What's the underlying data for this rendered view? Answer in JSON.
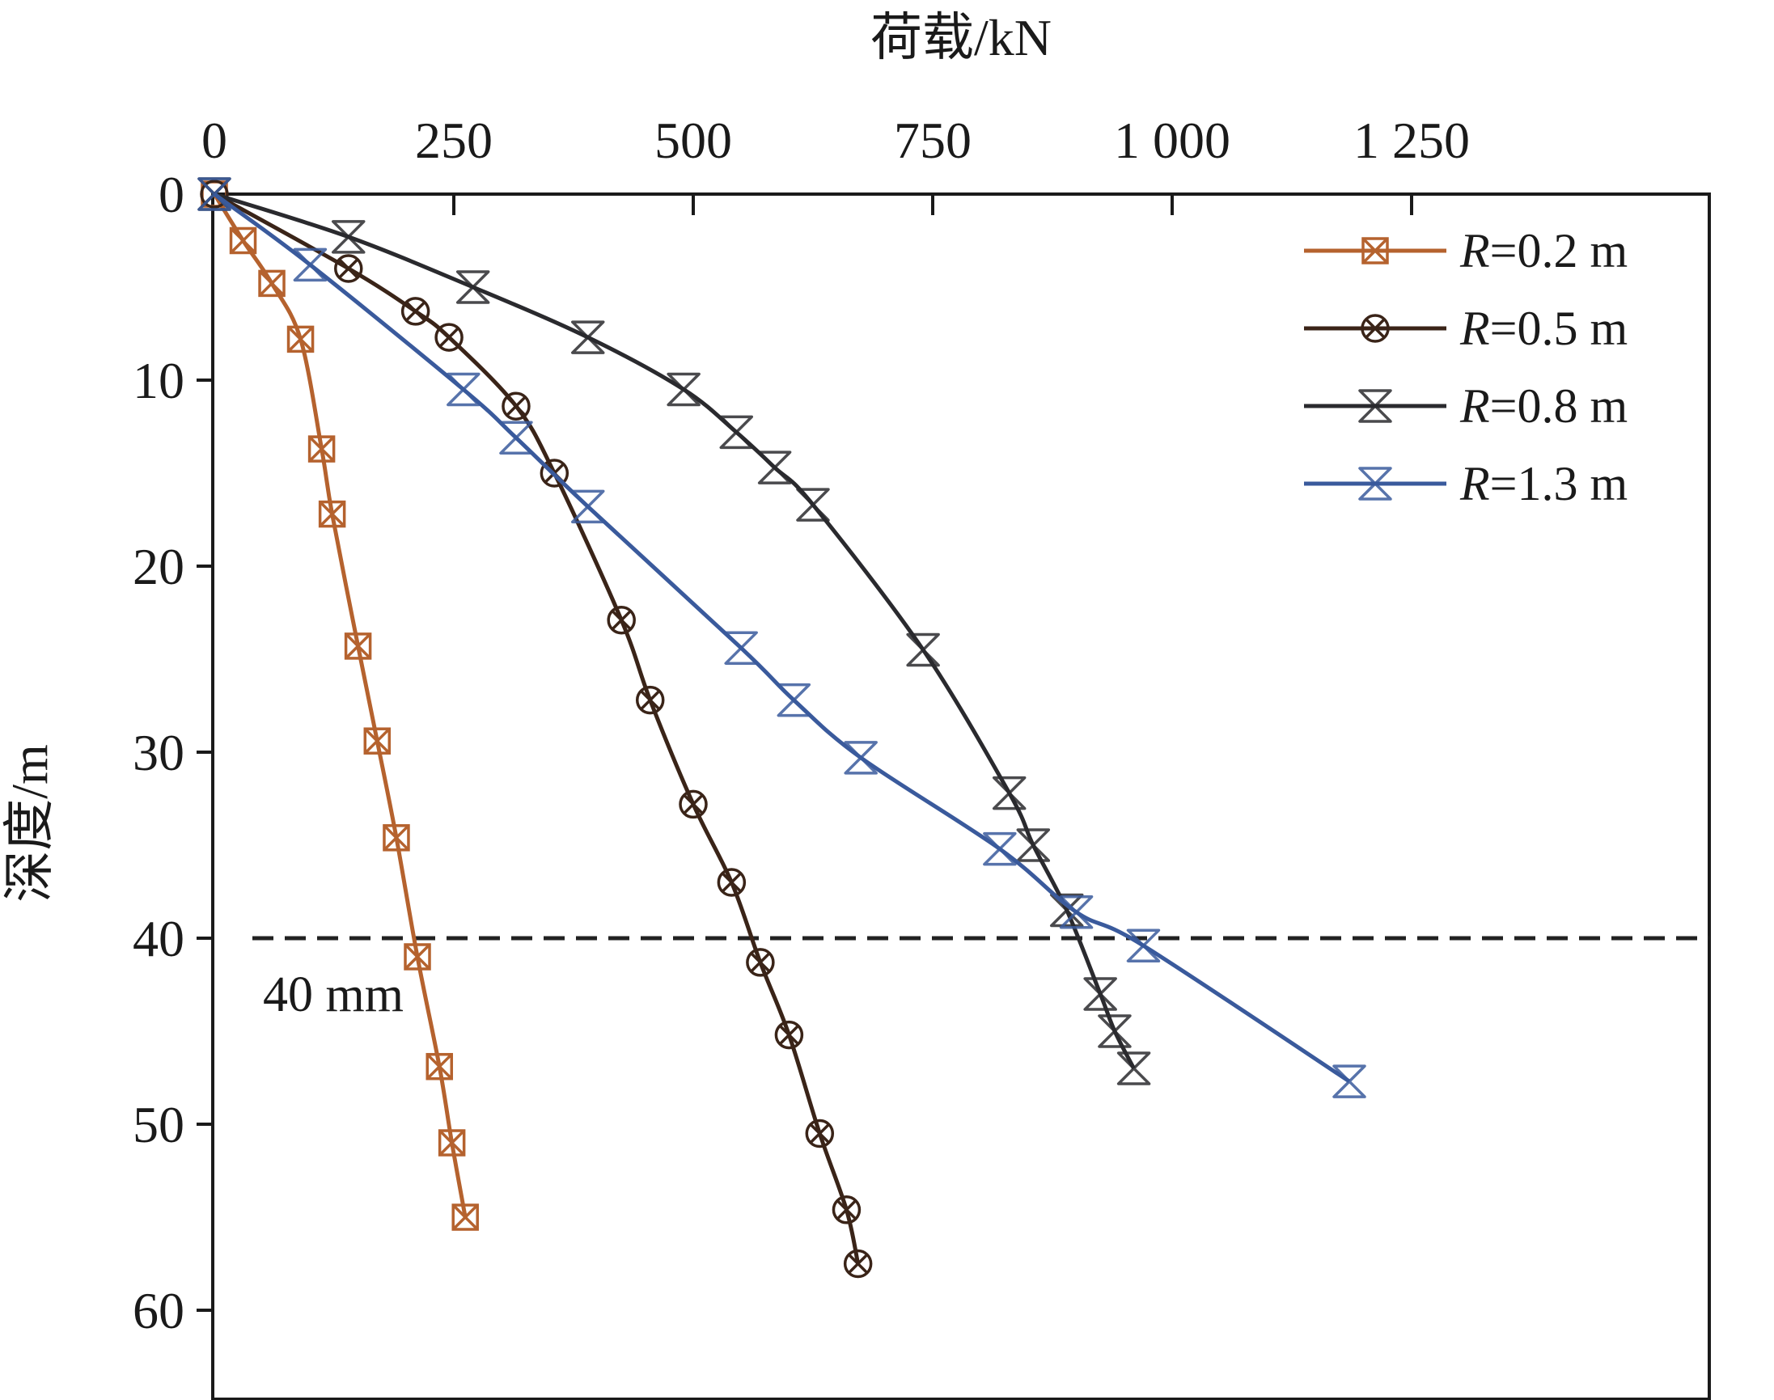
{
  "chart_data": {
    "type": "line",
    "xlabel": "荷载/kN",
    "ylabel": "深度/m",
    "x_ticks": [
      "0",
      "250",
      "500",
      "750",
      "1 000",
      "1 250"
    ],
    "x_tick_values": [
      0,
      250,
      500,
      750,
      1000,
      1250
    ],
    "y_ticks": [
      "0",
      "10",
      "20",
      "30",
      "40",
      "50",
      "60"
    ],
    "y_tick_values": [
      0,
      10,
      20,
      30,
      40,
      50,
      60
    ],
    "xlim": [
      0,
      1250
    ],
    "ylim": [
      0,
      65
    ],
    "x_axis_position": "top",
    "y_axis_inverted": true,
    "grid": false,
    "legend_position": "top-right",
    "reference_line": {
      "y": 40,
      "style": "dashed",
      "label": "40 mm",
      "color": "#222222"
    },
    "series": [
      {
        "name": "R=0.2 m",
        "color": "#b5622e",
        "marker": "square-x",
        "x": [
          0,
          30,
          60,
          90,
          112,
          123,
          150,
          170,
          190,
          212,
          235,
          248,
          262
        ],
        "y": [
          0,
          2.5,
          4.8,
          7.8,
          13.7,
          17.2,
          24.3,
          29.4,
          34.6,
          41,
          46.9,
          51,
          55
        ]
      },
      {
        "name": "R=0.5 m",
        "color": "#3a2418",
        "marker": "circle-x",
        "x": [
          0,
          140,
          210,
          245,
          315,
          355,
          425,
          455,
          500,
          540,
          570,
          600,
          632,
          660,
          672
        ],
        "y": [
          0,
          4,
          6.3,
          7.7,
          11.4,
          15,
          22.9,
          27.2,
          32.8,
          37,
          41.3,
          45.2,
          50.5,
          54.6,
          57.5
        ]
      },
      {
        "name": "R=0.8 m",
        "color": "#2a2a2e",
        "marker": "hourglass",
        "x": [
          0,
          140,
          270,
          390,
          490,
          545,
          585,
          625,
          740,
          830,
          855,
          890,
          925,
          940,
          960
        ],
        "y": [
          0,
          2.3,
          5,
          7.7,
          10.5,
          12.8,
          14.7,
          16.7,
          24.5,
          32.2,
          35,
          38.5,
          43,
          45,
          47
        ]
      },
      {
        "name": "R=1.3 m",
        "color": "#3a5a9c",
        "marker": "hourglass",
        "x": [
          0,
          100,
          260,
          315,
          390,
          550,
          605,
          675,
          820,
          900,
          970,
          1185
        ],
        "y": [
          0,
          3.8,
          10.5,
          13.1,
          16.8,
          24.4,
          27.2,
          30.3,
          35.2,
          38.6,
          40.4,
          47.7
        ]
      }
    ]
  }
}
